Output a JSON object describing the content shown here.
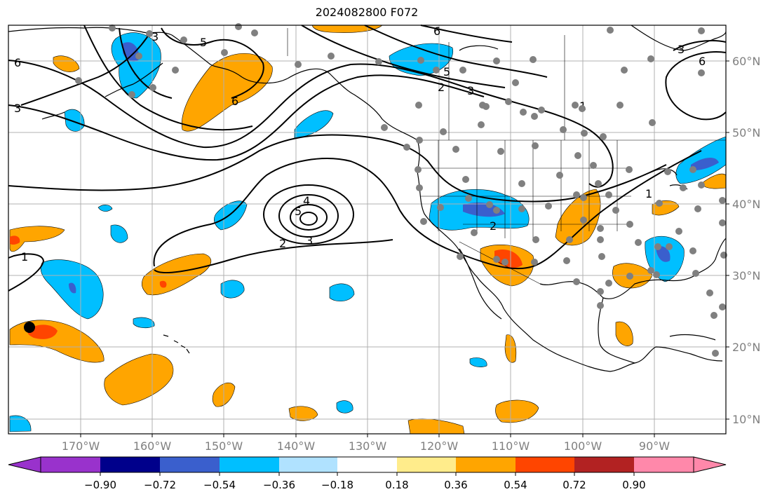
{
  "title": "2024082800 F072",
  "axes": {
    "lon_labels": [
      "170°W",
      "160°W",
      "150°W",
      "140°W",
      "130°W",
      "120°W",
      "110°W",
      "100°W",
      "90°W"
    ],
    "lat_labels": [
      "60°N",
      "50°N",
      "40°N",
      "30°N",
      "20°N",
      "10°N"
    ],
    "label_color": "#808080"
  },
  "colorbar": {
    "tick_labels": [
      "−0.90",
      "−0.72",
      "−0.54",
      "−0.36",
      "−0.18",
      "0.18",
      "0.36",
      "0.54",
      "0.72",
      "0.90"
    ],
    "colors": [
      "#9932cc",
      "#00008b",
      "#3a5fcd",
      "#00bfff",
      "#b0e2ff",
      "#ffffff",
      "#ffec8b",
      "#ffa500",
      "#ff4500",
      "#b22222",
      "#ff88aa"
    ]
  },
  "contour_labels": [
    "6",
    "5",
    "3",
    "6",
    "3",
    "5",
    "2",
    "3",
    "6",
    "3",
    "1",
    "6",
    "4",
    "5",
    "3",
    "2",
    "1",
    "2",
    "1"
  ],
  "map_colors": {
    "ocean": "#ffffff",
    "coast": "#000000",
    "grid": "#b0b0b0",
    "station": "#808080",
    "positive_light": "#ffa500",
    "positive_strong": "#ff4500",
    "negative_light": "#00bfff",
    "negative_strong": "#3a5fcd"
  }
}
